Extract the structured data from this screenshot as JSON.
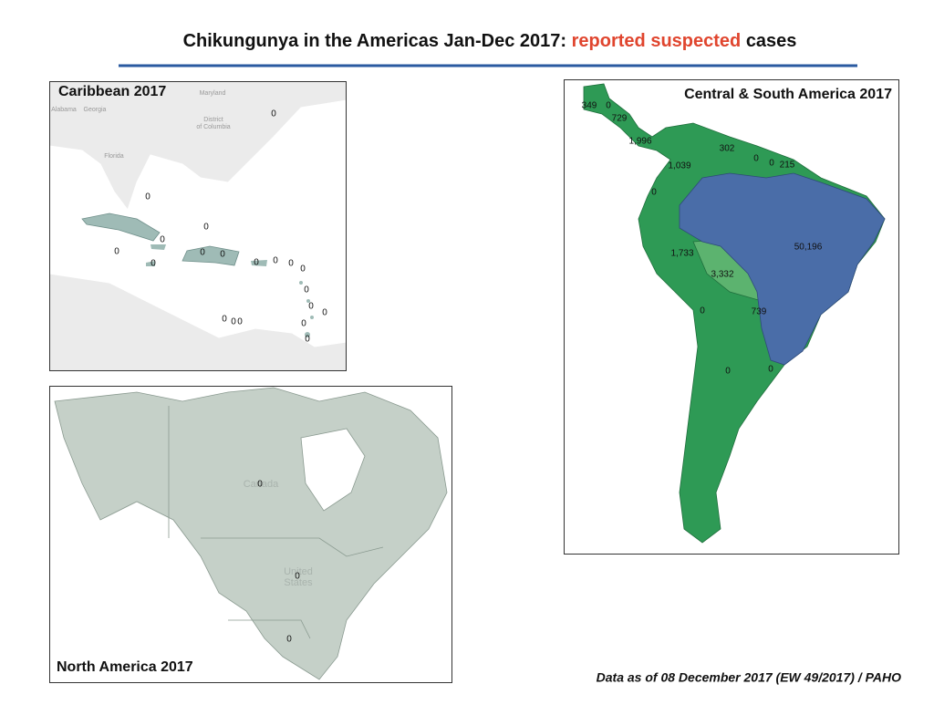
{
  "header": {
    "title_start": "Chikungunya in the Americas Jan-Dec 2017:",
    "title_highlight": "reported suspected",
    "title_end": "cases"
  },
  "caribbean": {
    "title": "Caribbean 2017",
    "place_names": [
      "Maryland",
      "Alabama",
      "Georgia",
      "District",
      "of Columbia",
      "Florida"
    ],
    "labels": [
      "0",
      "0",
      "0",
      "0",
      "0",
      "0",
      "0",
      "0",
      "0",
      "0",
      "0",
      "0",
      "0",
      "0",
      "0",
      "0",
      "0",
      "0",
      "0",
      "0"
    ]
  },
  "central_south": {
    "title": "Central & South America  2017",
    "labels": [
      "349",
      "0",
      "729",
      "1,996",
      "302",
      "0",
      "0",
      "215",
      "1,039",
      "0",
      "50,196",
      "1,733",
      "3,332",
      "0",
      "739",
      "0",
      "0"
    ]
  },
  "north_america": {
    "title": "North America 2017",
    "place_names": [
      "Canada",
      "United",
      "States"
    ],
    "labels": [
      "0",
      "0",
      "0"
    ]
  },
  "footnote": "Data as of 08 December 2017 (EW 49/2017) / PAHO"
}
